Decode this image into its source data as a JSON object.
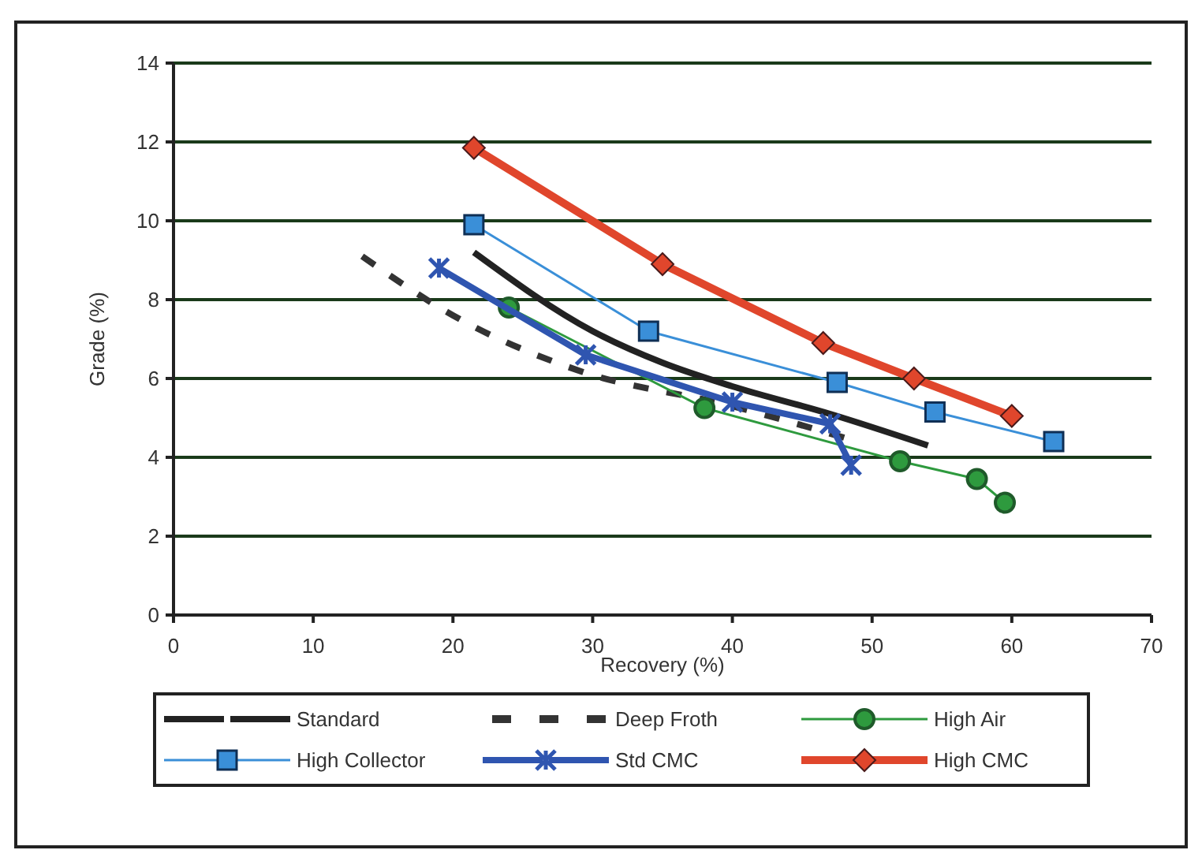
{
  "chart_data": {
    "type": "line",
    "xlabel": "Recovery (%)",
    "ylabel": "Grade (%)",
    "xlim": [
      0,
      70
    ],
    "xticks": [
      0,
      10,
      20,
      30,
      40,
      50,
      60,
      70
    ],
    "ylim": [
      0,
      14
    ],
    "yticks": [
      0,
      2,
      4,
      6,
      8,
      10,
      12,
      14
    ],
    "grid": "y",
    "legend": "bottom",
    "series": [
      {
        "name": "Standard",
        "color": "#222222",
        "marker": "none",
        "line_style": "solid",
        "x": [
          21.5,
          30,
          35,
          40,
          47,
          54
        ],
        "values": [
          9.2,
          7.2,
          6.4,
          5.8,
          5.1,
          4.3
        ]
      },
      {
        "name": "Deep Froth",
        "color": "#333333",
        "marker": "none",
        "line_style": "dashed",
        "x": [
          13.5,
          20,
          29,
          40,
          48
        ],
        "values": [
          9.1,
          7.6,
          6.2,
          5.3,
          4.5
        ]
      },
      {
        "name": "High Air",
        "color": "#2e9a3e",
        "marker": "circle",
        "line_style": "solid",
        "x": [
          24,
          38,
          52,
          57.5,
          59.5
        ],
        "values": [
          7.8,
          5.25,
          3.9,
          3.45,
          2.85
        ]
      },
      {
        "name": "High Collector",
        "color": "#3a8fd8",
        "marker": "square",
        "line_style": "solid",
        "x": [
          21.5,
          34,
          47.5,
          54.5,
          63
        ],
        "values": [
          9.9,
          7.2,
          5.9,
          5.15,
          4.4
        ]
      },
      {
        "name": "Std CMC",
        "color": "#2f55b0",
        "marker": "cross",
        "line_style": "solid",
        "x": [
          19,
          29.5,
          40,
          47,
          48.5
        ],
        "values": [
          8.8,
          6.6,
          5.4,
          4.85,
          3.8
        ]
      },
      {
        "name": "High CMC",
        "color": "#e0462c",
        "marker": "diamond",
        "line_style": "solid",
        "x": [
          21.5,
          35,
          46.5,
          53,
          60
        ],
        "values": [
          11.85,
          8.9,
          6.9,
          6.0,
          5.05
        ]
      }
    ]
  }
}
